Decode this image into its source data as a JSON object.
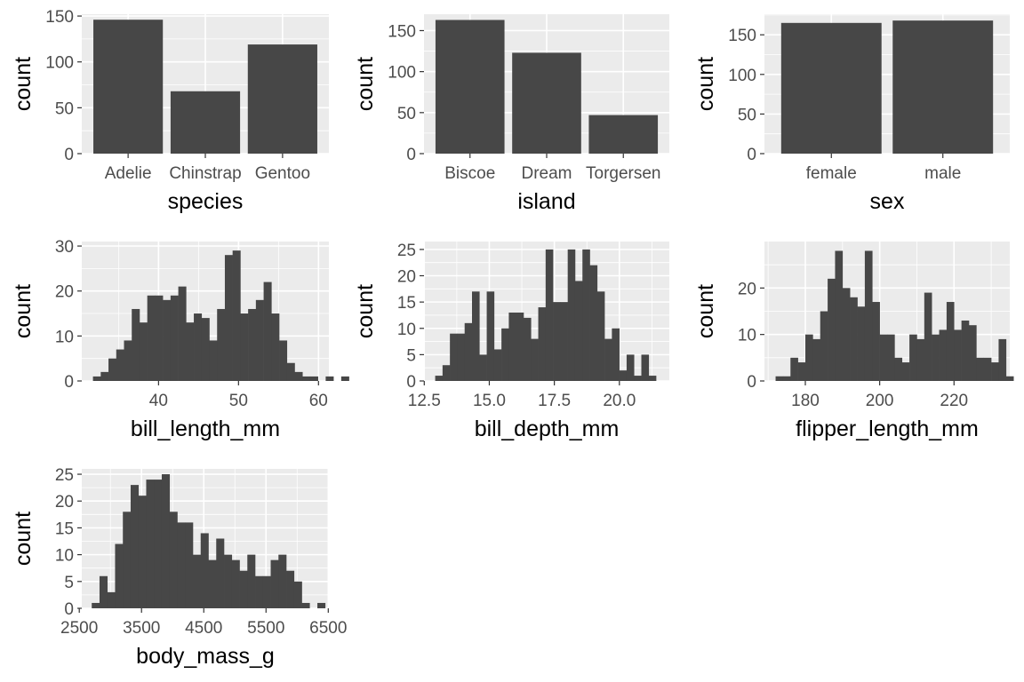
{
  "chart_data": [
    {
      "type": "bar",
      "xlabel": "species",
      "ylabel": "count",
      "categories": [
        "Adelie",
        "Chinstrap",
        "Gentoo"
      ],
      "values": [
        146,
        68,
        119
      ],
      "ylim": [
        0,
        152
      ],
      "yticks": [
        0,
        50,
        100,
        150
      ],
      "ytick_labels": [
        "0",
        "50",
        "100",
        "150"
      ],
      "grid": true
    },
    {
      "type": "bar",
      "xlabel": "island",
      "ylabel": "count",
      "categories": [
        "Biscoe",
        "Dream",
        "Torgersen"
      ],
      "values": [
        163,
        123,
        47
      ],
      "ylim": [
        0,
        170
      ],
      "yticks": [
        0,
        50,
        100,
        150
      ],
      "ytick_labels": [
        "0",
        "50",
        "100",
        "150"
      ],
      "grid": true
    },
    {
      "type": "bar",
      "xlabel": "sex",
      "ylabel": "count",
      "categories": [
        "female",
        "male"
      ],
      "values": [
        165,
        168
      ],
      "ylim": [
        0,
        176
      ],
      "yticks": [
        0,
        50,
        100,
        150
      ],
      "ytick_labels": [
        "0",
        "50",
        "100",
        "150"
      ],
      "grid": true
    },
    {
      "type": "histogram",
      "xlabel": "bill_length_mm",
      "ylabel": "count",
      "bin_start": 31.8,
      "bin_width": 0.97,
      "values": [
        1,
        2,
        5,
        7,
        9,
        16,
        13,
        19,
        19,
        18,
        19,
        21,
        13,
        15,
        14,
        9,
        16,
        28,
        29,
        15,
        16,
        18,
        22,
        15,
        9,
        4,
        2,
        1,
        1,
        0,
        1,
        0,
        1
      ],
      "xlim": [
        30.4,
        61.3
      ],
      "xticks": [
        40,
        50,
        60
      ],
      "xtick_labels": [
        "40",
        "50",
        "60"
      ],
      "ylim": [
        0,
        31
      ],
      "yticks": [
        0,
        10,
        20,
        30
      ],
      "ytick_labels": [
        "0",
        "10",
        "20",
        "30"
      ],
      "grid": true
    },
    {
      "type": "histogram",
      "xlabel": "bill_depth_mm",
      "ylabel": "count",
      "bin_start": 12.92,
      "bin_width": 0.283,
      "values": [
        1,
        3,
        9,
        9,
        11,
        17,
        5,
        17,
        6,
        10,
        13,
        13,
        12,
        8,
        14,
        25,
        15,
        15,
        25,
        19,
        25,
        22,
        17,
        8,
        10,
        2,
        5,
        1,
        5,
        1
      ],
      "xlim": [
        12.49,
        21.92
      ],
      "xticks": [
        12.5,
        15.0,
        17.5,
        20.0
      ],
      "xtick_labels": [
        "12.5",
        "15.0",
        "17.5",
        "20.0"
      ],
      "ylim": [
        0,
        26.5
      ],
      "yticks": [
        0,
        5,
        10,
        15,
        20,
        25
      ],
      "ytick_labels": [
        "0",
        "5",
        "10",
        "15",
        "20",
        "25"
      ],
      "grid": true
    },
    {
      "type": "histogram",
      "xlabel": "flipper_length_mm",
      "ylabel": "count",
      "bin_start": 172,
      "bin_width": 2,
      "values": [
        1,
        1,
        5,
        4,
        10,
        9,
        15,
        22,
        28,
        20,
        18,
        16,
        28,
        17,
        10,
        10,
        5,
        4,
        10,
        9,
        19,
        10,
        11,
        17,
        11,
        13,
        12,
        5,
        5,
        4,
        9,
        1
      ],
      "xlim": [
        169,
        235
      ],
      "xticks": [
        180,
        200,
        220
      ],
      "xtick_labels": [
        "180",
        "200",
        "220"
      ],
      "ylim": [
        0,
        30
      ],
      "yticks": [
        0,
        10,
        20
      ],
      "ytick_labels": [
        "0",
        "10",
        "20"
      ],
      "grid": true
    },
    {
      "type": "histogram",
      "xlabel": "body_mass_g",
      "ylabel": "count",
      "bin_start": 2700,
      "bin_width": 125,
      "values": [
        1,
        6,
        3,
        12,
        18,
        23,
        21,
        24,
        24,
        25,
        18,
        16,
        16,
        10,
        14,
        9,
        13,
        10,
        9,
        7,
        10,
        6,
        6,
        9,
        10,
        7,
        5,
        1,
        0,
        1
      ],
      "xlim": [
        2540,
        6510
      ],
      "xticks": [
        2500,
        3500,
        4500,
        5500,
        6500
      ],
      "xtick_labels": [
        "2500",
        "3500",
        "4500",
        "5500",
        "6500"
      ],
      "ylim": [
        0,
        26
      ],
      "yticks": [
        0,
        5,
        10,
        15,
        20,
        25
      ],
      "ytick_labels": [
        "0",
        "5",
        "10",
        "15",
        "20",
        "25"
      ],
      "grid": true
    }
  ]
}
